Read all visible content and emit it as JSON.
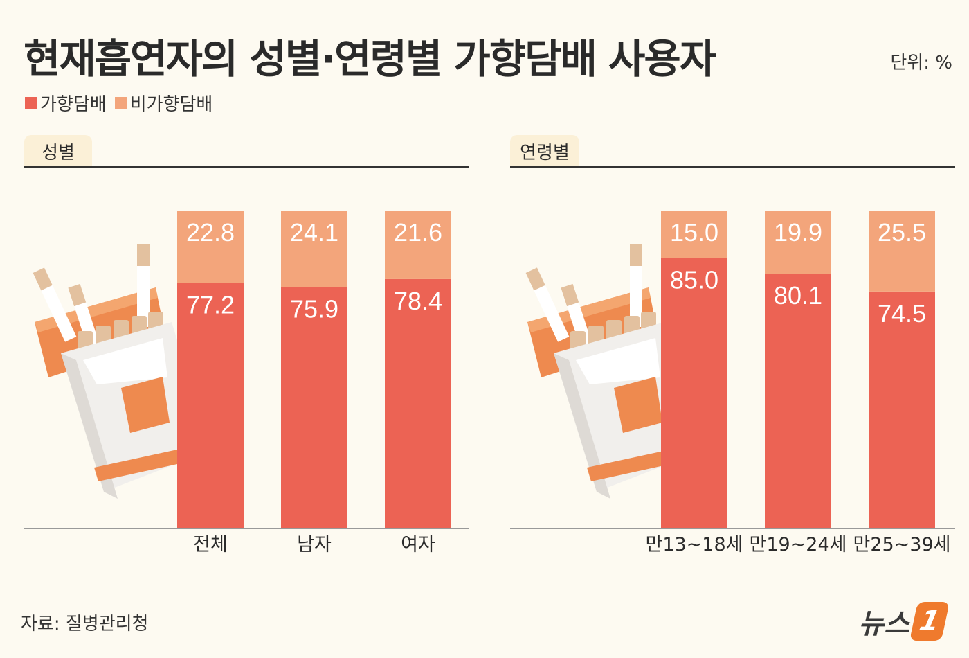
{
  "title": "현재흡연자의 성별·연령별 가향담배 사용자",
  "unit": "단위: %",
  "legend": [
    {
      "label": "가향담배",
      "color": "#ec6354"
    },
    {
      "label": "비가향담배",
      "color": "#f3a57b"
    }
  ],
  "panels": {
    "gender": {
      "tab": "성별"
    },
    "age": {
      "tab": "연령별"
    }
  },
  "source": "자료: 질병관리청",
  "brand": {
    "text": "뉴스",
    "mark": "1"
  },
  "colors": {
    "flavored": "#ec6354",
    "nonflavored": "#f3a57b",
    "background": "#fdfaf1",
    "pack_orange": "#ee8a4f"
  },
  "illustration": {
    "left": "cigarette-pack-icon",
    "right": "cigarette-pack-icon"
  },
  "chart_data": [
    {
      "type": "bar",
      "stacked": true,
      "title": "성별",
      "categories": [
        "전체",
        "남자",
        "여자"
      ],
      "series": [
        {
          "name": "가향담배",
          "values": [
            77.2,
            75.9,
            78.4
          ]
        },
        {
          "name": "비가향담배",
          "values": [
            22.8,
            24.1,
            21.6
          ]
        }
      ],
      "ylim": [
        0,
        100
      ]
    },
    {
      "type": "bar",
      "stacked": true,
      "title": "연령별",
      "categories": [
        "만13~18세",
        "만19~24세",
        "만25~39세"
      ],
      "series": [
        {
          "name": "가향담배",
          "values": [
            85.0,
            80.1,
            74.5
          ]
        },
        {
          "name": "비가향담배",
          "values": [
            15.0,
            19.9,
            25.5
          ]
        }
      ],
      "ylim": [
        0,
        100
      ]
    }
  ]
}
